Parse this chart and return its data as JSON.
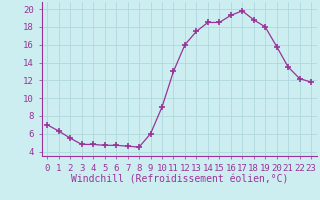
{
  "x": [
    0,
    1,
    2,
    3,
    4,
    5,
    6,
    7,
    8,
    9,
    10,
    11,
    12,
    13,
    14,
    15,
    16,
    17,
    18,
    19,
    20,
    21,
    22,
    23
  ],
  "y": [
    7.0,
    6.3,
    5.5,
    4.8,
    4.8,
    4.7,
    4.7,
    4.6,
    4.5,
    6.0,
    9.0,
    13.0,
    16.0,
    17.5,
    18.5,
    18.5,
    19.3,
    19.8,
    18.8,
    18.0,
    15.8,
    13.5,
    12.2,
    11.8
  ],
  "line_color": "#993399",
  "marker": "+",
  "marker_size": 4,
  "bg_color": "#cceef0",
  "grid_color": "#b0d8dc",
  "xlabel": "Windchill (Refroidissement éolien,°C)",
  "xlim": [
    -0.5,
    23.5
  ],
  "ylim": [
    3.5,
    20.8
  ],
  "yticks": [
    4,
    6,
    8,
    10,
    12,
    14,
    16,
    18,
    20
  ],
  "xtick_labels": [
    "0",
    "1",
    "2",
    "3",
    "4",
    "5",
    "6",
    "7",
    "8",
    "9",
    "10",
    "11",
    "12",
    "13",
    "14",
    "15",
    "16",
    "17",
    "18",
    "19",
    "20",
    "21",
    "22",
    "23"
  ],
  "label_color": "#993399",
  "font_size": 6.5,
  "xlabel_fontsize": 7
}
